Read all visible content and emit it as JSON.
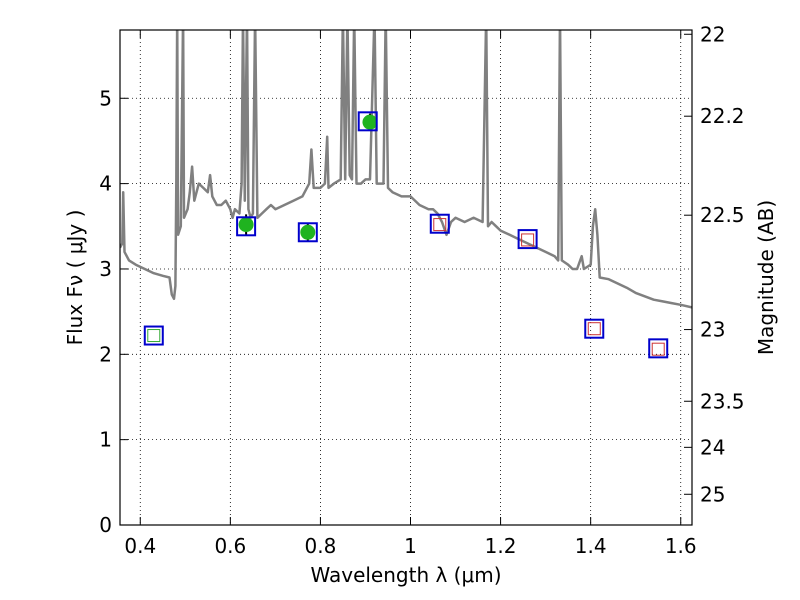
{
  "chart_data": {
    "type": "line",
    "title": "",
    "xlabel": "Wavelength  λ (μm)",
    "ylabel": "Flux  Fν  ( μJy )",
    "ylabel_right": "Magnitude (AB)",
    "xlim": [
      0.355,
      1.625
    ],
    "ylim": [
      0,
      5.8
    ],
    "grid": true,
    "grid_style": "dotted",
    "x_ticks": [
      0.4,
      0.6,
      0.8,
      1.0,
      1.2,
      1.4,
      1.6
    ],
    "x_tick_labels": [
      "0.4",
      "0.6",
      "0.8",
      "1",
      "1.2",
      "1.4",
      "1.6"
    ],
    "y_ticks": [
      0,
      1,
      2,
      3,
      4,
      5
    ],
    "y_tick_labels": [
      "0",
      "1",
      "2",
      "3",
      "4",
      "5"
    ],
    "right_ticks": [
      {
        "label": "22",
        "flux": 5.75
      },
      {
        "label": "22.2",
        "flux": 4.79
      },
      {
        "label": "22.5",
        "flux": 3.63
      },
      {
        "label": "23",
        "flux": 2.29
      },
      {
        "label": "23.5",
        "flux": 1.45
      },
      {
        "label": "24",
        "flux": 0.91
      },
      {
        "label": "25",
        "flux": 0.36
      }
    ],
    "colors": {
      "sed": "#808080",
      "observed_fill": "#1fb31f",
      "model_box": "#0000cc",
      "upper_box": "#cc3333",
      "uv_box": "#33aa33"
    },
    "series": [
      {
        "kind": "sed",
        "points": [
          [
            0.355,
            3.25
          ],
          [
            0.36,
            3.3
          ],
          [
            0.362,
            3.9
          ],
          [
            0.365,
            3.2
          ],
          [
            0.375,
            3.1
          ],
          [
            0.39,
            3.05
          ],
          [
            0.41,
            3.0
          ],
          [
            0.43,
            2.95
          ],
          [
            0.45,
            2.92
          ],
          [
            0.465,
            2.9
          ],
          [
            0.47,
            2.7
          ],
          [
            0.475,
            2.65
          ],
          [
            0.478,
            2.8
          ],
          [
            0.48,
            4.0
          ],
          [
            0.482,
            6.0
          ],
          [
            0.484,
            3.4
          ],
          [
            0.49,
            3.5
          ],
          [
            0.495,
            6.0
          ],
          [
            0.497,
            3.6
          ],
          [
            0.505,
            3.7
          ],
          [
            0.51,
            3.9
          ],
          [
            0.515,
            4.2
          ],
          [
            0.52,
            3.8
          ],
          [
            0.53,
            4.0
          ],
          [
            0.54,
            3.95
          ],
          [
            0.55,
            3.9
          ],
          [
            0.555,
            4.1
          ],
          [
            0.56,
            3.85
          ],
          [
            0.57,
            3.75
          ],
          [
            0.58,
            3.75
          ],
          [
            0.59,
            3.8
          ],
          [
            0.6,
            3.7
          ],
          [
            0.605,
            3.6
          ],
          [
            0.61,
            3.7
          ],
          [
            0.62,
            3.65
          ],
          [
            0.625,
            4.0
          ],
          [
            0.628,
            6.0
          ],
          [
            0.632,
            3.8
          ],
          [
            0.637,
            6.0
          ],
          [
            0.64,
            3.7
          ],
          [
            0.645,
            3.6
          ],
          [
            0.65,
            3.65
          ],
          [
            0.655,
            6.0
          ],
          [
            0.66,
            3.6
          ],
          [
            0.67,
            3.65
          ],
          [
            0.68,
            3.7
          ],
          [
            0.69,
            3.75
          ],
          [
            0.7,
            3.7
          ],
          [
            0.72,
            3.75
          ],
          [
            0.74,
            3.8
          ],
          [
            0.76,
            3.85
          ],
          [
            0.775,
            4.0
          ],
          [
            0.78,
            4.4
          ],
          [
            0.785,
            3.95
          ],
          [
            0.8,
            3.95
          ],
          [
            0.81,
            4.0
          ],
          [
            0.815,
            4.55
          ],
          [
            0.818,
            3.95
          ],
          [
            0.83,
            4.0
          ],
          [
            0.845,
            4.05
          ],
          [
            0.85,
            6.0
          ],
          [
            0.855,
            4.05
          ],
          [
            0.86,
            6.0
          ],
          [
            0.865,
            4.1
          ],
          [
            0.87,
            4.05
          ],
          [
            0.875,
            6.0
          ],
          [
            0.88,
            4.0
          ],
          [
            0.89,
            4.0
          ],
          [
            0.9,
            4.05
          ],
          [
            0.91,
            4.05
          ],
          [
            0.92,
            6.0
          ],
          [
            0.925,
            4.0
          ],
          [
            0.94,
            4.0
          ],
          [
            0.945,
            6.0
          ],
          [
            0.95,
            3.95
          ],
          [
            0.96,
            3.9
          ],
          [
            0.98,
            3.85
          ],
          [
            1.0,
            3.85
          ],
          [
            1.02,
            3.75
          ],
          [
            1.04,
            3.7
          ],
          [
            1.05,
            3.7
          ],
          [
            1.06,
            3.65
          ],
          [
            1.065,
            3.6
          ],
          [
            1.07,
            3.55
          ],
          [
            1.08,
            3.4
          ],
          [
            1.09,
            3.55
          ],
          [
            1.1,
            3.6
          ],
          [
            1.12,
            3.55
          ],
          [
            1.14,
            3.6
          ],
          [
            1.16,
            3.55
          ],
          [
            1.168,
            6.0
          ],
          [
            1.172,
            3.5
          ],
          [
            1.18,
            3.55
          ],
          [
            1.19,
            3.5
          ],
          [
            1.2,
            3.45
          ],
          [
            1.22,
            3.4
          ],
          [
            1.24,
            3.35
          ],
          [
            1.26,
            3.3
          ],
          [
            1.28,
            3.25
          ],
          [
            1.3,
            3.2
          ],
          [
            1.32,
            3.15
          ],
          [
            1.328,
            3.1
          ],
          [
            1.332,
            6.0
          ],
          [
            1.336,
            3.1
          ],
          [
            1.35,
            3.05
          ],
          [
            1.36,
            3.0
          ],
          [
            1.37,
            3.0
          ],
          [
            1.38,
            3.15
          ],
          [
            1.385,
            3.0
          ],
          [
            1.4,
            3.05
          ],
          [
            1.405,
            3.5
          ],
          [
            1.41,
            3.7
          ],
          [
            1.415,
            3.4
          ],
          [
            1.42,
            2.9
          ],
          [
            1.44,
            2.88
          ],
          [
            1.46,
            2.83
          ],
          [
            1.48,
            2.78
          ],
          [
            1.5,
            2.72
          ],
          [
            1.52,
            2.68
          ],
          [
            1.54,
            2.64
          ],
          [
            1.56,
            2.62
          ],
          [
            1.58,
            2.6
          ],
          [
            1.6,
            2.58
          ],
          [
            1.625,
            2.55
          ]
        ]
      },
      {
        "kind": "observed",
        "points": [
          [
            0.635,
            3.52
          ],
          [
            0.772,
            3.43
          ],
          [
            0.91,
            4.72
          ]
        ],
        "errors": [
          0.12,
          0.1,
          0.1
        ]
      },
      {
        "kind": "model",
        "points": [
          [
            0.43,
            2.22
          ],
          [
            0.635,
            3.5
          ],
          [
            0.772,
            3.43
          ],
          [
            0.905,
            4.73
          ],
          [
            1.065,
            3.53
          ],
          [
            1.26,
            3.35
          ],
          [
            1.408,
            2.3
          ],
          [
            1.55,
            2.07
          ]
        ]
      },
      {
        "kind": "upper",
        "points": [
          [
            1.065,
            3.52
          ],
          [
            1.26,
            3.34
          ],
          [
            1.408,
            2.3
          ],
          [
            1.55,
            2.06
          ]
        ]
      }
    ]
  }
}
